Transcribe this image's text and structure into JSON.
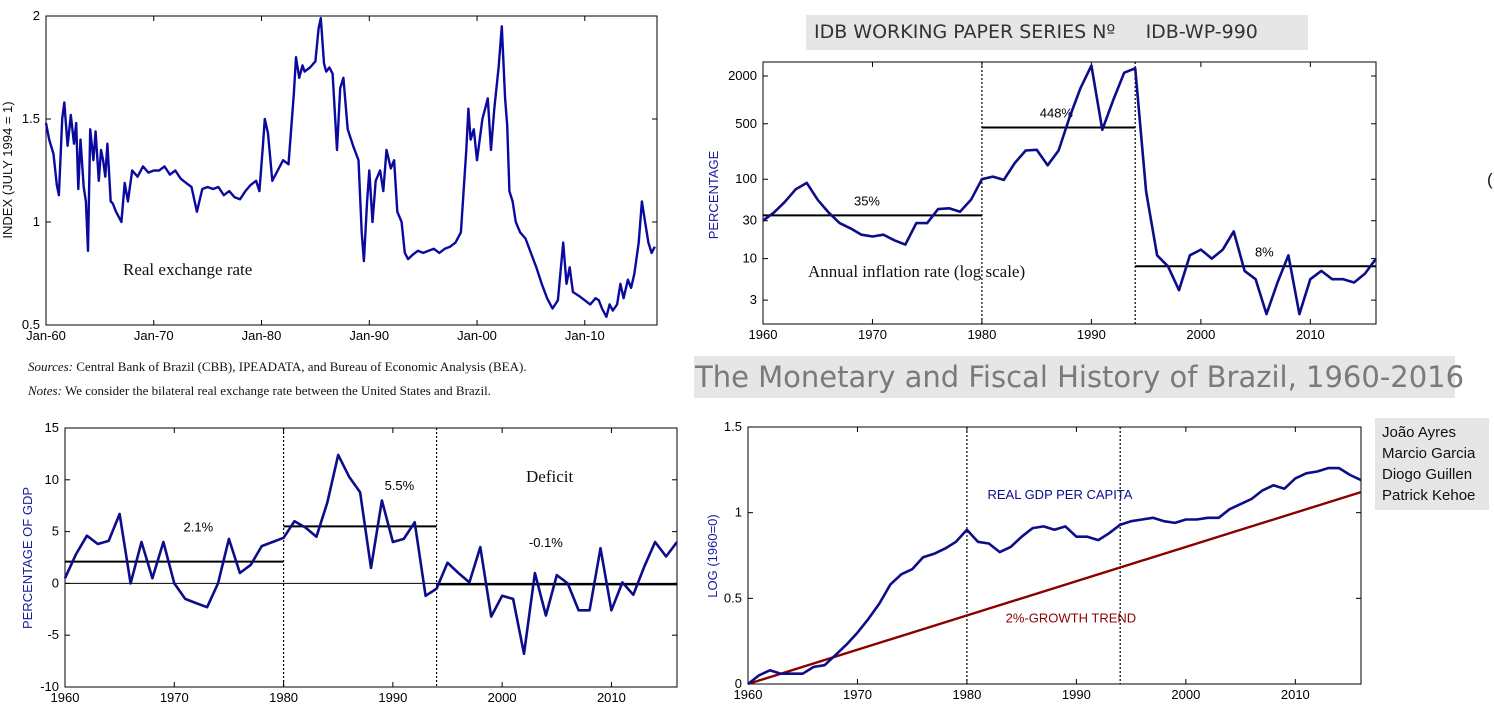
{
  "header": {
    "banner": "IDB WORKING PAPER SERIES Nº     IDB-WP-990",
    "title": "The Monetary and Fiscal History of Brazil, 1960-2016",
    "authors": [
      "João Ayres",
      "Marcio Garcia",
      "Diogo Guillen",
      "Patrick Kehoe"
    ],
    "edge_glyph": "("
  },
  "notes": {
    "sources_label": "Sources:",
    "sources_text": " Central Bank of Brazil (CBB), IPEADATA, and Bureau of Economic Analysis (BEA).",
    "notes_label": "Notes:",
    "notes_text": " We consider the bilateral real exchange rate between the United States and Brazil."
  },
  "colors": {
    "line": "#0a0aa0",
    "dark_line": "#0d0d8a",
    "trend": "#8b0000",
    "banner_bg": "#e6e6e6"
  },
  "chart_data": [
    {
      "type": "line",
      "ylabel": "INDEX (JULY 1994 = 1)",
      "annotation": "Real exchange rate",
      "ylim": [
        0.5,
        2
      ],
      "xlim": [
        1960,
        2016.7
      ],
      "x_ticks": [
        {
          "v": 1960,
          "label": "Jan-60"
        },
        {
          "v": 1970,
          "label": "Jan-70"
        },
        {
          "v": 1980,
          "label": "Jan-80"
        },
        {
          "v": 1990,
          "label": "Jan-90"
        },
        {
          "v": 2000,
          "label": "Jan-00"
        },
        {
          "v": 2010,
          "label": "Jan-10"
        }
      ],
      "y_ticks": [
        {
          "v": 0.5,
          "label": "0.5"
        },
        {
          "v": 1,
          "label": "1"
        },
        {
          "v": 1.5,
          "label": "1.5"
        },
        {
          "v": 2,
          "label": "2"
        }
      ],
      "series": [
        {
          "x": [
            1960,
            1960.3,
            1960.7,
            1961,
            1961.2,
            1961.5,
            1961.7,
            1962,
            1962.3,
            1962.6,
            1962.8,
            1963,
            1963.2,
            1963.5,
            1963.7,
            1963.9,
            1964.1,
            1964.4,
            1964.6,
            1964.9,
            1965.1,
            1965.3,
            1965.5,
            1965.7,
            1966,
            1966.2,
            1966.5,
            1966.7,
            1967,
            1967.3,
            1967.6,
            1968,
            1968.5,
            1969,
            1969.5,
            1970,
            1970.5,
            1971,
            1971.5,
            1972,
            1972.5,
            1973,
            1973.5,
            1974,
            1974.5,
            1975,
            1975.5,
            1976,
            1976.5,
            1977,
            1977.5,
            1978,
            1978.5,
            1979,
            1979.5,
            1979.8,
            1980.1,
            1980.3,
            1980.6,
            1981,
            1981.5,
            1982,
            1982.5,
            1983,
            1983.2,
            1983.5,
            1983.8,
            1984,
            1984.5,
            1985,
            1985.3,
            1985.5,
            1985.8,
            1986,
            1986.3,
            1986.6,
            1987,
            1987.3,
            1987.6,
            1988,
            1988.5,
            1989,
            1989.3,
            1989.5,
            1989.8,
            1990,
            1990.3,
            1990.6,
            1991,
            1991.3,
            1991.6,
            1992,
            1992.3,
            1992.6,
            1993,
            1993.3,
            1993.6,
            1994,
            1994.5,
            1995,
            1995.5,
            1996,
            1996.5,
            1997,
            1997.5,
            1998,
            1998.5,
            1999,
            1999.2,
            1999.4,
            1999.7,
            2000,
            2000.5,
            2001,
            2001.3,
            2001.6,
            2002,
            2002.3,
            2002.6,
            2002.8,
            2003,
            2003.3,
            2003.6,
            2004,
            2004.5,
            2005,
            2005.5,
            2006,
            2006.5,
            2007,
            2007.5,
            2008,
            2008.3,
            2008.6,
            2008.9,
            2009.2,
            2009.5,
            2010,
            2010.5,
            2011,
            2011.3,
            2011.6,
            2012,
            2012.3,
            2012.6,
            2013,
            2013.3,
            2013.6,
            2014,
            2014.3,
            2014.6,
            2015,
            2015.3,
            2015.6,
            2015.9,
            2016.2,
            2016.5
          ],
          "y": [
            1.48,
            1.4,
            1.33,
            1.18,
            1.13,
            1.5,
            1.58,
            1.37,
            1.52,
            1.38,
            1.48,
            1.16,
            1.4,
            1.17,
            1.1,
            0.86,
            1.45,
            1.3,
            1.44,
            1.2,
            1.35,
            1.3,
            1.22,
            1.38,
            1.1,
            1.09,
            1.05,
            1.03,
            1.0,
            1.19,
            1.1,
            1.25,
            1.22,
            1.27,
            1.24,
            1.25,
            1.25,
            1.27,
            1.23,
            1.25,
            1.21,
            1.19,
            1.17,
            1.05,
            1.16,
            1.17,
            1.16,
            1.17,
            1.13,
            1.15,
            1.12,
            1.11,
            1.15,
            1.18,
            1.2,
            1.15,
            1.35,
            1.5,
            1.43,
            1.2,
            1.25,
            1.3,
            1.28,
            1.62,
            1.8,
            1.7,
            1.76,
            1.73,
            1.75,
            1.78,
            1.94,
            1.99,
            1.77,
            1.73,
            1.75,
            1.72,
            1.35,
            1.65,
            1.7,
            1.45,
            1.37,
            1.3,
            0.95,
            0.81,
            1.1,
            1.25,
            1.0,
            1.2,
            1.25,
            1.15,
            1.35,
            1.26,
            1.3,
            1.05,
            1.0,
            0.85,
            0.82,
            0.84,
            0.86,
            0.85,
            0.86,
            0.87,
            0.85,
            0.87,
            0.88,
            0.9,
            0.95,
            1.35,
            1.55,
            1.4,
            1.45,
            1.3,
            1.5,
            1.6,
            1.35,
            1.55,
            1.75,
            1.95,
            1.6,
            1.47,
            1.15,
            1.1,
            1.0,
            0.95,
            0.92,
            0.85,
            0.78,
            0.7,
            0.63,
            0.58,
            0.62,
            0.9,
            0.7,
            0.78,
            0.66,
            0.65,
            0.64,
            0.62,
            0.6,
            0.63,
            0.62,
            0.58,
            0.54,
            0.6,
            0.57,
            0.6,
            0.7,
            0.63,
            0.72,
            0.68,
            0.75,
            0.9,
            1.1,
            1.0,
            0.9,
            0.85,
            0.88
          ]
        }
      ]
    },
    {
      "type": "line",
      "ylabel": "PERCENTAGE",
      "annotation": "Annual inflation rate (log scale)",
      "yscale": "log",
      "ylim": [
        1.5,
        3000
      ],
      "xlim": [
        1960,
        2016
      ],
      "x_ticks": [
        {
          "v": 1960,
          "label": "1960"
        },
        {
          "v": 1970,
          "label": "1970"
        },
        {
          "v": 1980,
          "label": "1980"
        },
        {
          "v": 1990,
          "label": "1990"
        },
        {
          "v": 2000,
          "label": "2000"
        },
        {
          "v": 2010,
          "label": "2010"
        }
      ],
      "y_ticks": [
        {
          "v": 3,
          "label": "3"
        },
        {
          "v": 10,
          "label": "10"
        },
        {
          "v": 30,
          "label": "30"
        },
        {
          "v": 100,
          "label": "100"
        },
        {
          "v": 500,
          "label": "500"
        },
        {
          "v": 2000,
          "label": "2000"
        }
      ],
      "vlines": [
        1980,
        1994
      ],
      "averages": [
        {
          "x0": 1960,
          "x1": 1980,
          "v": 35,
          "label": "35%",
          "label_x": 1969.5
        },
        {
          "x0": 1980,
          "x1": 1994,
          "v": 448,
          "label": "448%",
          "label_x": 1986.8
        },
        {
          "x0": 1994,
          "x1": 2016,
          "v": 8,
          "label": "8%",
          "label_x": 2005.8
        }
      ],
      "series": [
        {
          "x": [
            1960,
            1961,
            1962,
            1963,
            1964,
            1965,
            1966,
            1967,
            1968,
            1969,
            1970,
            1971,
            1972,
            1973,
            1974,
            1975,
            1976,
            1977,
            1978,
            1979,
            1980,
            1981,
            1982,
            1983,
            1984,
            1985,
            1986,
            1987,
            1988,
            1989,
            1990,
            1991,
            1992,
            1993,
            1994,
            1995,
            1996,
            1997,
            1998,
            1999,
            2000,
            2001,
            2002,
            2003,
            2004,
            2005,
            2006,
            2007,
            2008,
            2009,
            2010,
            2011,
            2012,
            2013,
            2014,
            2015,
            2016
          ],
          "y": [
            30,
            38,
            52,
            75,
            90,
            55,
            38,
            28,
            24,
            20,
            19,
            20,
            17,
            15,
            28,
            28,
            42,
            43,
            39,
            55,
            100,
            108,
            98,
            160,
            230,
            235,
            150,
            230,
            600,
            1400,
            2700,
            420,
            1000,
            2200,
            2500,
            70,
            11,
            8,
            4,
            11,
            13,
            10,
            13,
            22,
            7,
            5.5,
            2,
            5,
            11,
            2,
            5.5,
            7,
            5.5,
            5.5,
            5,
            6.5,
            10
          ]
        }
      ]
    },
    {
      "type": "line",
      "ylabel": "PERCENTAGE OF GDP",
      "annotation": "Deficit",
      "ylim": [
        -10,
        15
      ],
      "xlim": [
        1960,
        2016
      ],
      "x_ticks": [
        {
          "v": 1960,
          "label": "1960"
        },
        {
          "v": 1970,
          "label": "1970"
        },
        {
          "v": 1980,
          "label": "1980"
        },
        {
          "v": 1990,
          "label": "1990"
        },
        {
          "v": 2000,
          "label": "2000"
        },
        {
          "v": 2010,
          "label": "2010"
        }
      ],
      "y_ticks": [
        {
          "v": -10,
          "label": "-10"
        },
        {
          "v": -5,
          "label": "-5"
        },
        {
          "v": 0,
          "label": "0"
        },
        {
          "v": 5,
          "label": "5"
        },
        {
          "v": 10,
          "label": "10"
        },
        {
          "v": 15,
          "label": "15"
        }
      ],
      "vlines": [
        1980,
        1994
      ],
      "averages": [
        {
          "x0": 1960,
          "x1": 1980,
          "v": 2.1,
          "label": "2.1%",
          "label_x": 1972.2,
          "label_y": 5
        },
        {
          "x0": 1980,
          "x1": 1994,
          "v": 5.5,
          "label": "5.5%",
          "label_x": 1990.6,
          "label_y": 9
        },
        {
          "x0": 1994,
          "x1": 2016,
          "v": -0.1,
          "label": "-0.1%",
          "label_x": 2004,
          "label_y": 3.5
        }
      ],
      "series": [
        {
          "x": [
            1960,
            1961,
            1962,
            1963,
            1964,
            1965,
            1966,
            1967,
            1968,
            1969,
            1970,
            1971,
            1972,
            1973,
            1974,
            1975,
            1976,
            1977,
            1978,
            1979,
            1980,
            1981,
            1982,
            1983,
            1984,
            1985,
            1986,
            1987,
            1988,
            1989,
            1990,
            1991,
            1992,
            1993,
            1994,
            1995,
            1996,
            1997,
            1998,
            1999,
            2000,
            2001,
            2002,
            2003,
            2004,
            2005,
            2006,
            2007,
            2008,
            2009,
            2010,
            2011,
            2012,
            2013,
            2014,
            2015,
            2016
          ],
          "y": [
            0.5,
            2.8,
            4.6,
            3.8,
            4.1,
            6.7,
            0,
            4,
            0.5,
            4,
            0,
            -1.5,
            -1.9,
            -2.3,
            0,
            4.3,
            1,
            1.8,
            3.6,
            4,
            4.4,
            6,
            5.4,
            4.5,
            7.8,
            12.4,
            10.3,
            8.8,
            1.5,
            8,
            4,
            4.3,
            5.9,
            -1.2,
            -0.5,
            2,
            1,
            0.1,
            3.5,
            -3.2,
            -1.2,
            -1.5,
            -6.8,
            1,
            -3.1,
            0.8,
            0,
            -2.6,
            -2.6,
            3.4,
            -2.6,
            0.1,
            -1.1,
            1.6,
            4,
            2.6,
            4
          ]
        }
      ]
    },
    {
      "type": "line",
      "ylabel": "LOG (1960=0)",
      "ylim": [
        0,
        1.5
      ],
      "xlim": [
        1960,
        2016
      ],
      "x_ticks": [
        {
          "v": 1960,
          "label": "1960"
        },
        {
          "v": 1970,
          "label": "1970"
        },
        {
          "v": 1980,
          "label": "1980"
        },
        {
          "v": 1990,
          "label": "1990"
        },
        {
          "v": 2000,
          "label": "2000"
        },
        {
          "v": 2010,
          "label": "2010"
        }
      ],
      "y_ticks": [
        {
          "v": 0,
          "label": "0"
        },
        {
          "v": 0.5,
          "label": "0.5"
        },
        {
          "v": 1,
          "label": "1"
        },
        {
          "v": 1.5,
          "label": "1.5"
        }
      ],
      "vlines": [
        1980,
        1994
      ],
      "series": [
        {
          "name": "REAL GDP PER CAPITA",
          "label_x": 1988.5,
          "label_y": 1.08,
          "x": [
            1960,
            1961,
            1962,
            1963,
            1964,
            1965,
            1966,
            1967,
            1968,
            1969,
            1970,
            1971,
            1972,
            1973,
            1974,
            1975,
            1976,
            1977,
            1978,
            1979,
            1980,
            1981,
            1982,
            1983,
            1984,
            1985,
            1986,
            1987,
            1988,
            1989,
            1990,
            1991,
            1992,
            1993,
            1994,
            1995,
            1996,
            1997,
            1998,
            1999,
            2000,
            2001,
            2002,
            2003,
            2004,
            2005,
            2006,
            2007,
            2008,
            2009,
            2010,
            2011,
            2012,
            2013,
            2014,
            2015,
            2016
          ],
          "y": [
            0,
            0.05,
            0.08,
            0.06,
            0.06,
            0.06,
            0.1,
            0.11,
            0.17,
            0.23,
            0.3,
            0.38,
            0.47,
            0.58,
            0.64,
            0.67,
            0.74,
            0.76,
            0.79,
            0.83,
            0.9,
            0.83,
            0.82,
            0.77,
            0.8,
            0.86,
            0.91,
            0.92,
            0.9,
            0.92,
            0.86,
            0.86,
            0.84,
            0.88,
            0.93,
            0.95,
            0.96,
            0.97,
            0.95,
            0.94,
            0.96,
            0.96,
            0.97,
            0.97,
            1.02,
            1.05,
            1.08,
            1.13,
            1.16,
            1.14,
            1.2,
            1.23,
            1.24,
            1.26,
            1.26,
            1.22,
            1.19
          ]
        },
        {
          "name": "2%-GROWTH TREND",
          "label_x": 1989.5,
          "label_y": 0.36,
          "x": [
            1960,
            2016
          ],
          "y": [
            0,
            1.12
          ]
        }
      ]
    }
  ]
}
